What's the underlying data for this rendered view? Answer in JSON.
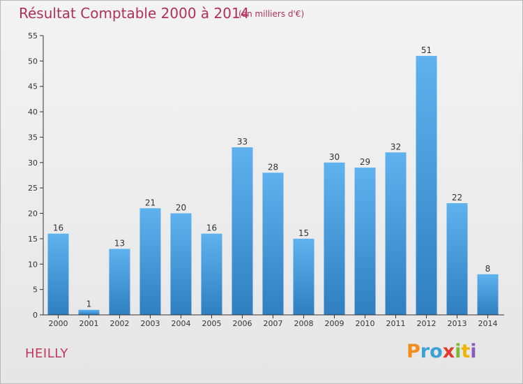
{
  "header": {
    "title": "Résultat Comptable 2000 à 2014",
    "subtitle": "(en milliers d'€)"
  },
  "footer": {
    "town": "HEILLY",
    "logo_text": "Proxiti",
    "logo_letters": [
      "P",
      "r",
      "o",
      "x",
      "i",
      "t",
      "i"
    ],
    "logo_colors": [
      "#f28c1a",
      "#3aa0d8",
      "#3aa0d8",
      "#e23b2e",
      "#7cbb2f",
      "#f0b400",
      "#8a5bb8"
    ]
  },
  "colors": {
    "bar_top": "#5fb2ee",
    "bar_bottom": "#2f7fc1",
    "axis": "#333333",
    "grid": "#d9d9d9",
    "title": "#b0305a"
  },
  "chart_data": {
    "type": "bar",
    "title": "Résultat Comptable 2000 à 2014",
    "subtitle": "(en milliers d'€)",
    "xlabel": "",
    "ylabel": "",
    "categories": [
      "2000",
      "2001",
      "2002",
      "2003",
      "2004",
      "2005",
      "2006",
      "2007",
      "2008",
      "2009",
      "2010",
      "2011",
      "2012",
      "2013",
      "2014"
    ],
    "values": [
      16,
      1,
      13,
      21,
      20,
      16,
      33,
      28,
      15,
      30,
      29,
      32,
      51,
      22,
      8
    ],
    "ylim": [
      0,
      55
    ],
    "yticks": [
      0,
      5,
      10,
      15,
      20,
      25,
      30,
      35,
      40,
      45,
      50,
      55
    ],
    "grid": false,
    "legend": "none"
  }
}
